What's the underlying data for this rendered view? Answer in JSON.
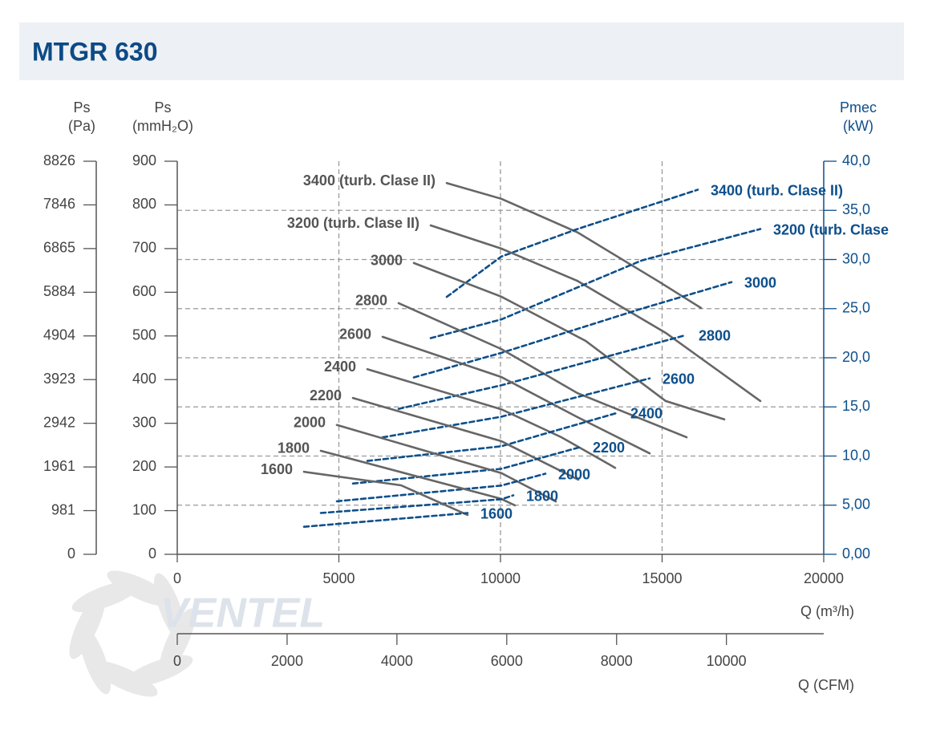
{
  "chart_data": {
    "type": "line",
    "title": "MTGR 630",
    "logo_text": "VENTEL",
    "ylabel": [
      "Ps",
      "(mmH₂O)"
    ],
    "y2label": [
      "Pmec",
      "(kW)"
    ],
    "xlabel": "Q (m³/h)",
    "xlim": [
      0,
      20000
    ],
    "xticks": [
      0,
      5000,
      10000,
      15000,
      20000
    ],
    "ylim": [
      0,
      900
    ],
    "yticks": [
      0,
      100,
      200,
      300,
      400,
      500,
      600,
      700,
      800,
      900
    ],
    "y2lim": [
      0,
      40
    ],
    "y2ticks": [
      {
        "value": 0,
        "label": "0,00"
      },
      {
        "value": 5,
        "label": "5,00"
      },
      {
        "value": 10,
        "label": "10,0"
      },
      {
        "value": 15,
        "label": "15,0"
      },
      {
        "value": 20,
        "label": "20,0"
      },
      {
        "value": 25,
        "label": "25,0"
      },
      {
        "value": 30,
        "label": "30,0"
      },
      {
        "value": 35,
        "label": "35,0"
      },
      {
        "value": 40,
        "label": "40,0"
      }
    ],
    "pa_axis": {
      "label": [
        "Ps",
        "(Pa)"
      ],
      "lim": [
        0,
        8826
      ],
      "ticks": [
        0,
        981,
        1961,
        2942,
        3923,
        4904,
        5884,
        6865,
        7846,
        8826
      ]
    },
    "cfm_axis": {
      "label": "Q (CFM)",
      "lim": [
        0,
        11772
      ],
      "ticks": [
        0,
        2000,
        4000,
        6000,
        8000,
        10000
      ]
    },
    "grid": true,
    "series": [
      {
        "name": "3400 (turb. Clase II)",
        "color": "#666666",
        "axis": "y",
        "x": [
          8337,
          10025,
          12382,
          14864,
          16203
        ],
        "values": [
          850,
          814,
          737,
          626,
          564
        ]
      },
      {
        "name": "3400 (turb. Clase II)",
        "color": "#0d4f8b",
        "axis": "y2",
        "dashed": true,
        "x": [
          8337,
          10025,
          12382,
          16104
        ],
        "values": [
          26.2,
          30.3,
          33.1,
          37.1
        ]
      },
      {
        "name": "3200 (turb. Clase II)",
        "color": "#666666",
        "axis": "y",
        "x": [
          7841,
          10025,
          12382,
          15112,
          18040
        ],
        "values": [
          753,
          700,
          626,
          507,
          351
        ]
      },
      {
        "name": "3200 (turb. Clase",
        "color": "#0d4f8b",
        "axis": "y2",
        "dashed": true,
        "x": [
          7841,
          10025,
          14367,
          18040
        ],
        "values": [
          22.0,
          23.9,
          29.9,
          33.1
        ]
      },
      {
        "name": "3000",
        "color": "#666666",
        "axis": "y",
        "x": [
          7320,
          10025,
          12630,
          15112,
          16923
        ],
        "values": [
          667,
          590,
          489,
          351,
          309
        ]
      },
      {
        "name": "3000",
        "color": "#0d4f8b",
        "axis": "y2",
        "dashed": true,
        "x": [
          7320,
          10025,
          14367,
          17146
        ],
        "values": [
          18.0,
          20.5,
          25.0,
          27.7
        ]
      },
      {
        "name": "2800",
        "color": "#666666",
        "axis": "y",
        "x": [
          6849,
          10025,
          12382,
          15757
        ],
        "values": [
          575,
          470,
          369,
          268
        ]
      },
      {
        "name": "2800",
        "color": "#0d4f8b",
        "axis": "y2",
        "dashed": true,
        "x": [
          6849,
          10025,
          15732
        ],
        "values": [
          14.8,
          17.2,
          22.3
        ]
      },
      {
        "name": "2600",
        "color": "#666666",
        "axis": "y",
        "x": [
          6352,
          10025,
          12382,
          14615
        ],
        "values": [
          498,
          406,
          314,
          231
        ]
      },
      {
        "name": "2600",
        "color": "#0d4f8b",
        "axis": "y2",
        "dashed": true,
        "x": [
          6352,
          10025,
          14615
        ],
        "values": [
          11.9,
          14.0,
          17.9
        ]
      },
      {
        "name": "2400",
        "color": "#666666",
        "axis": "y",
        "x": [
          5881,
          10025,
          11886,
          13548
        ],
        "values": [
          424,
          332,
          268,
          198
        ]
      },
      {
        "name": "2400",
        "color": "#0d4f8b",
        "axis": "y2",
        "dashed": true,
        "x": [
          5881,
          10025,
          13623
        ],
        "values": [
          9.5,
          11.0,
          14.4
        ]
      },
      {
        "name": "2200",
        "color": "#666666",
        "axis": "y",
        "x": [
          5434,
          10025,
          12407
        ],
        "values": [
          358,
          259,
          171
        ]
      },
      {
        "name": "2200",
        "color": "#0d4f8b",
        "axis": "y2",
        "dashed": true,
        "x": [
          5434,
          10025,
          12457
        ],
        "values": [
          7.2,
          8.7,
          10.9
        ]
      },
      {
        "name": "2000",
        "color": "#666666",
        "axis": "y",
        "x": [
          4938,
          10025,
          11712
        ],
        "values": [
          296,
          186,
          121
        ]
      },
      {
        "name": "2000",
        "color": "#0d4f8b",
        "axis": "y2",
        "dashed": true,
        "x": [
          4938,
          10025,
          11390
        ],
        "values": [
          5.4,
          7.0,
          8.2
        ]
      },
      {
        "name": "1800",
        "color": "#666666",
        "axis": "y",
        "x": [
          4442,
          10025,
          10447
        ],
        "values": [
          237,
          127,
          112
        ]
      },
      {
        "name": "1800",
        "color": "#0d4f8b",
        "axis": "y2",
        "dashed": true,
        "x": [
          4442,
          10025,
          10397
        ],
        "values": [
          4.2,
          5.6,
          6.0
        ]
      },
      {
        "name": "1600",
        "color": "#666666",
        "axis": "y",
        "x": [
          3921,
          6923,
          8983
        ],
        "values": [
          189,
          158,
          90
        ]
      },
      {
        "name": "1600",
        "color": "#0d4f8b",
        "axis": "y2",
        "dashed": true,
        "x": [
          3921,
          8983
        ],
        "values": [
          2.8,
          4.2
        ]
      }
    ]
  }
}
